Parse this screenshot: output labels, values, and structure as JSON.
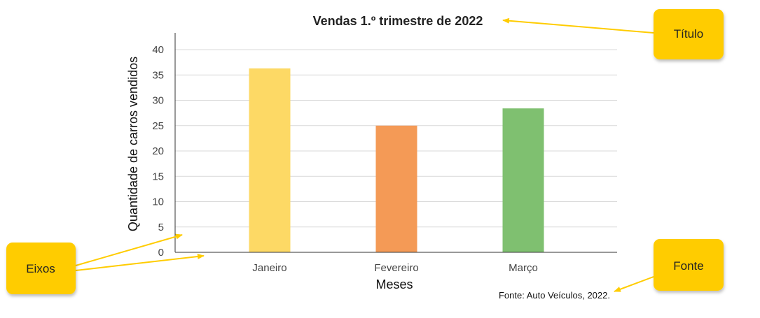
{
  "chart_data": {
    "type": "bar",
    "title": "Vendas 1.º trimestre de 2022",
    "xlabel": "Meses",
    "ylabel": "Quantidade de carros vendidos",
    "categories": [
      "Janeiro",
      "Fevereiro",
      "Março"
    ],
    "values": [
      36.3,
      25,
      28.4
    ],
    "colors": [
      "#fdd965",
      "#f49a56",
      "#7fc070"
    ],
    "ylim": [
      0,
      40
    ],
    "yticks": [
      0,
      5,
      10,
      15,
      20,
      25,
      30,
      35,
      40
    ],
    "grid": true,
    "source": "Fonte: Auto Veículos, 2022."
  },
  "callouts": {
    "title_label": "Título",
    "axes_label": "Eixos",
    "source_label": "Fonte",
    "color": "#ffcc00"
  }
}
